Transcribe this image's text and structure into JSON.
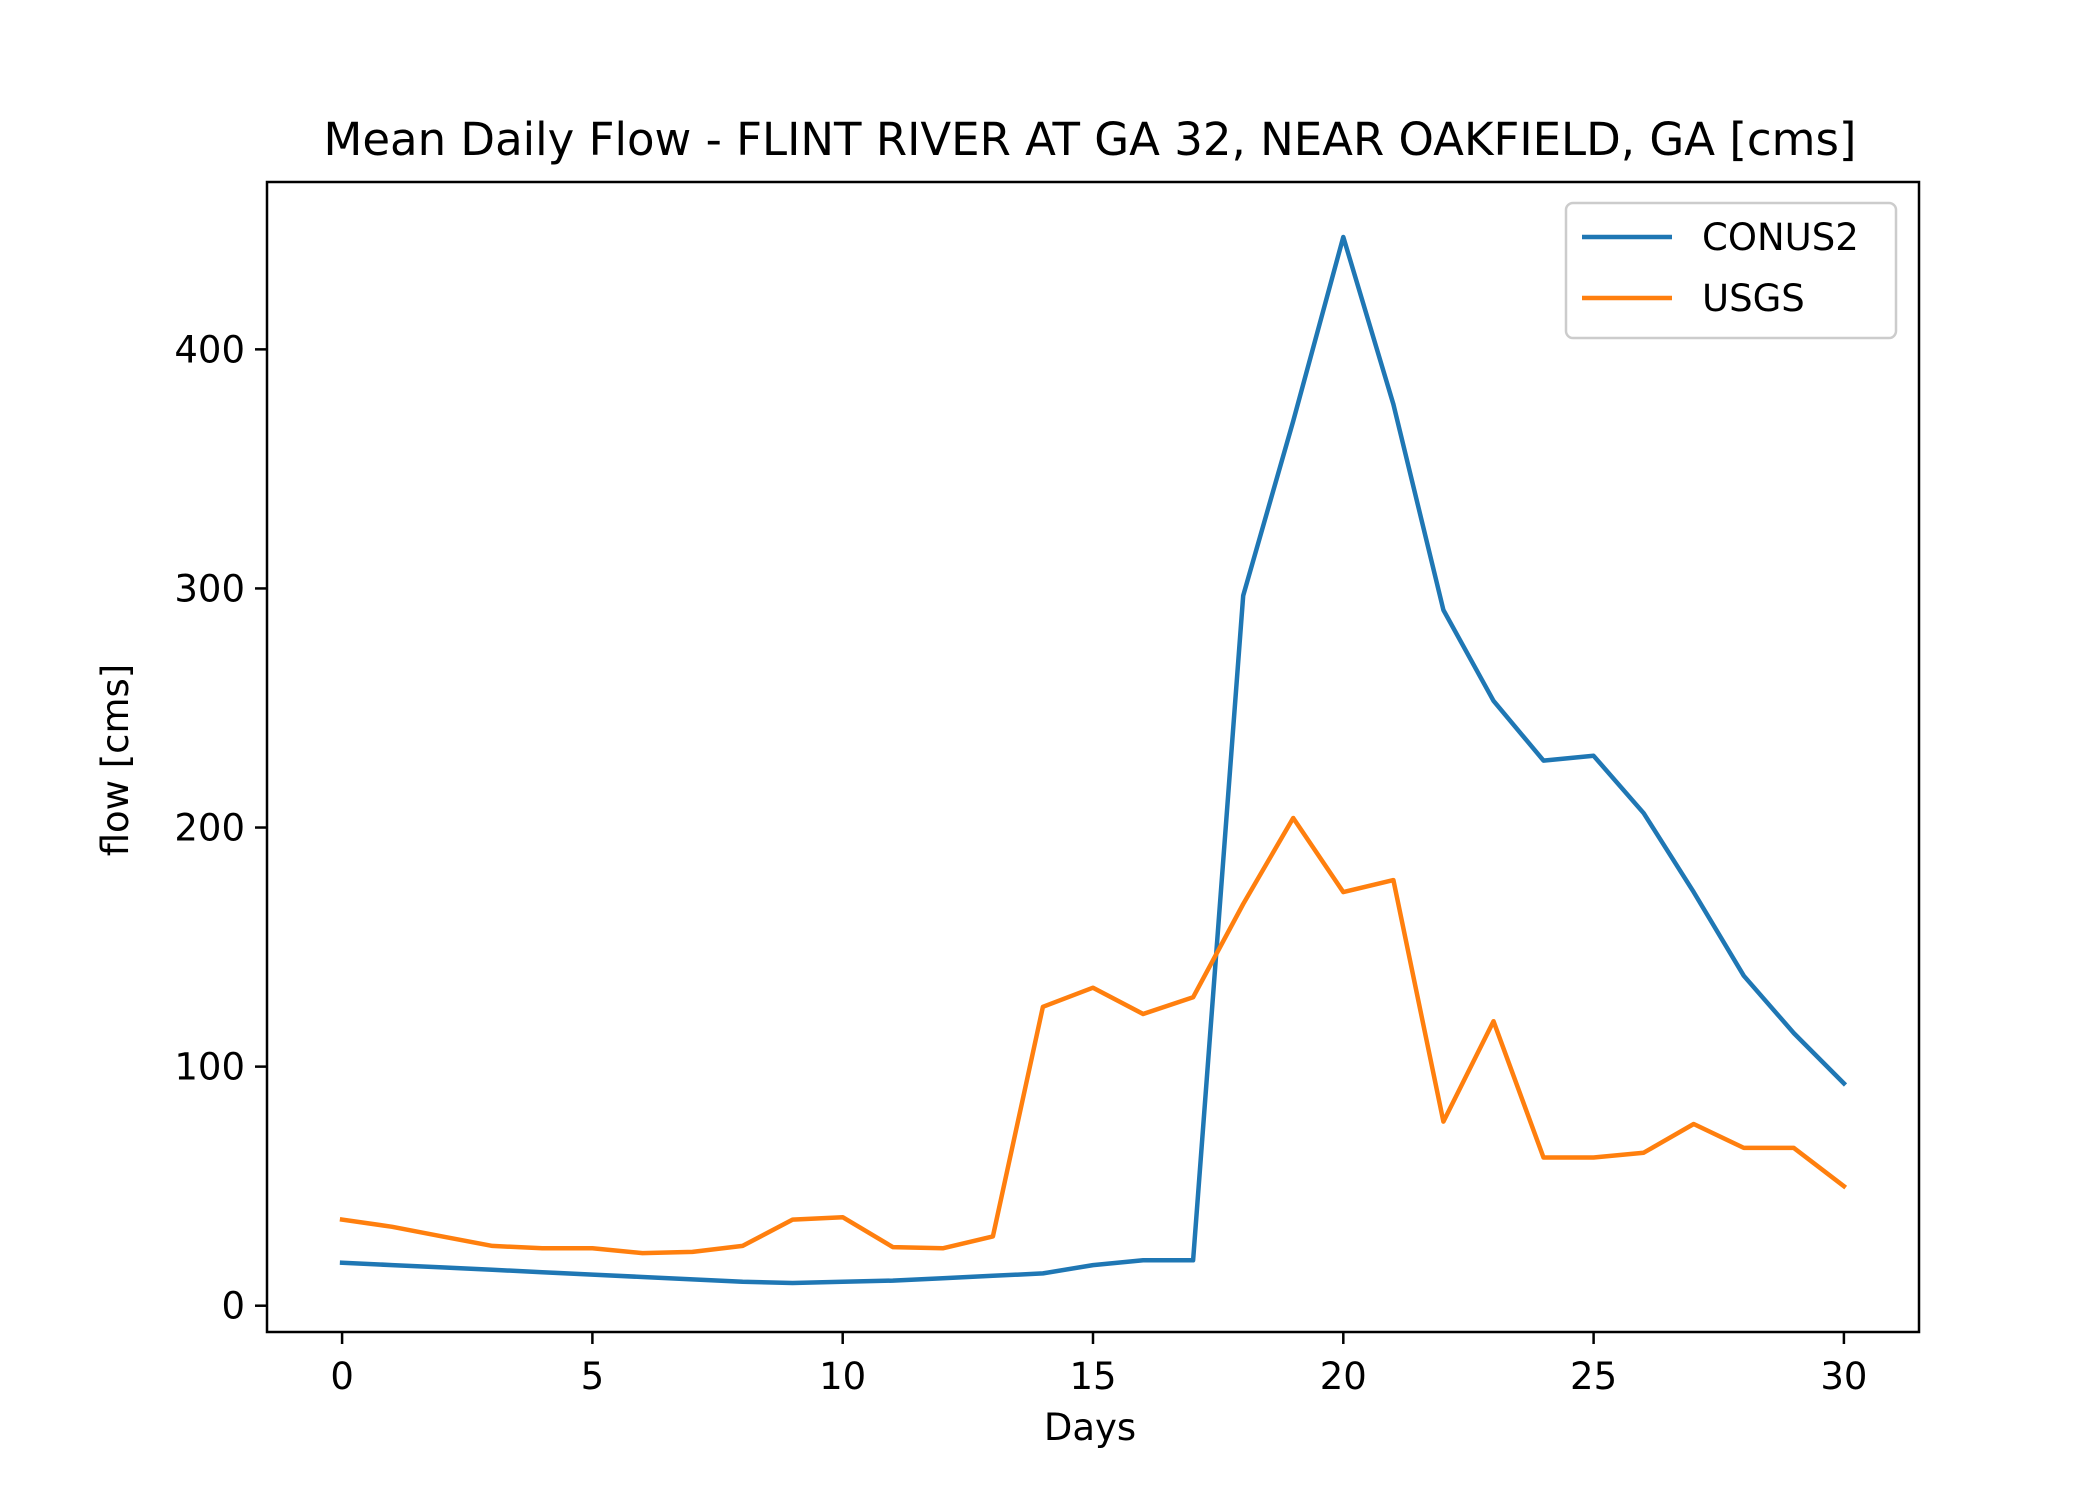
{
  "chart_data": {
    "type": "line",
    "title": "Mean Daily Flow - FLINT RIVER AT GA 32, NEAR OAKFIELD, GA [cms]",
    "xlabel": "Days",
    "ylabel": "flow [cms]",
    "xlim": [
      -1.5,
      31.5
    ],
    "ylim": [
      -11,
      470
    ],
    "xticks": [
      0,
      5,
      10,
      15,
      20,
      25,
      30
    ],
    "yticks": [
      0,
      100,
      200,
      300,
      400
    ],
    "xtick_labels": [
      "0",
      "5",
      "10",
      "15",
      "20",
      "25",
      "30"
    ],
    "ytick_labels": [
      "0",
      "100",
      "200",
      "300",
      "400"
    ],
    "grid": false,
    "legend_position": "top-right",
    "x": [
      0,
      1,
      2,
      3,
      4,
      5,
      6,
      7,
      8,
      9,
      10,
      11,
      12,
      13,
      14,
      15,
      16,
      17,
      18,
      19,
      20,
      21,
      22,
      23,
      24,
      25,
      26,
      27,
      28,
      29,
      30
    ],
    "series": [
      {
        "name": "CONUS2",
        "color": "#1f77b4",
        "values": [
          18,
          17,
          16,
          15,
          14,
          13,
          12,
          11,
          10,
          9.5,
          10,
          10.5,
          11.5,
          12.5,
          13.5,
          17,
          19,
          19,
          297,
          370,
          447,
          377,
          291,
          253,
          228,
          230,
          206,
          173,
          138,
          114,
          93
        ]
      },
      {
        "name": "USGS",
        "color": "#ff7f0e",
        "values": [
          36,
          33,
          29,
          25,
          24,
          24,
          22,
          22.5,
          25,
          36,
          37,
          24.5,
          24,
          29,
          125,
          133,
          122,
          129,
          168,
          204,
          173,
          178,
          77,
          119,
          62,
          62,
          64,
          76,
          66,
          66,
          50
        ]
      }
    ]
  }
}
